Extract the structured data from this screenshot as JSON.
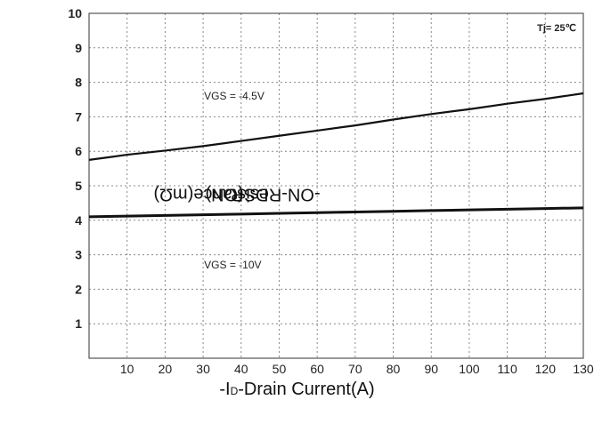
{
  "chart_data": {
    "type": "line",
    "title": "",
    "xlabel": "-ID-Drain Current(A)",
    "xlabel_prefix": "-I",
    "xlabel_sub": "D",
    "xlabel_suffix": "-Drain Current(A)",
    "ylabel": "RDS(ON)-ON-Resistance(mΩ)",
    "ylabel_prefix": "R",
    "ylabel_sub": "DS(ON)",
    "ylabel_suffix": "-ON-Resistance(mΩ)",
    "annotation": "Tj= 25℃",
    "series_labels": [
      {
        "text": "VGS = -4.5V"
      },
      {
        "text": "VGS = -10V"
      }
    ],
    "xlim": [
      0,
      130
    ],
    "ylim": [
      0,
      10
    ],
    "x_ticks": [
      "10",
      "20",
      "30",
      "40",
      "50",
      "60",
      "70",
      "80",
      "90",
      "100",
      "110",
      "120",
      "130"
    ],
    "y_ticks": [
      "1",
      "2",
      "3",
      "4",
      "5",
      "6",
      "7",
      "8",
      "9",
      "10"
    ],
    "grid": true,
    "colors": {
      "line": "#111111",
      "grid": "#888888",
      "frame": "#333333"
    },
    "series": [
      {
        "name": "VGS = -4.5V",
        "x": [
          0,
          10,
          20,
          30,
          40,
          50,
          60,
          70,
          80,
          90,
          100,
          110,
          120,
          130
        ],
        "y": [
          5.75,
          5.9,
          6.02,
          6.15,
          6.3,
          6.45,
          6.6,
          6.75,
          6.92,
          7.08,
          7.22,
          7.38,
          7.52,
          7.68
        ]
      },
      {
        "name": "VGS = -10V",
        "x": [
          0,
          10,
          20,
          30,
          40,
          50,
          60,
          70,
          80,
          90,
          100,
          110,
          120,
          130
        ],
        "y": [
          4.1,
          4.12,
          4.14,
          4.16,
          4.18,
          4.2,
          4.22,
          4.24,
          4.26,
          4.28,
          4.3,
          4.32,
          4.34,
          4.36
        ]
      }
    ]
  }
}
